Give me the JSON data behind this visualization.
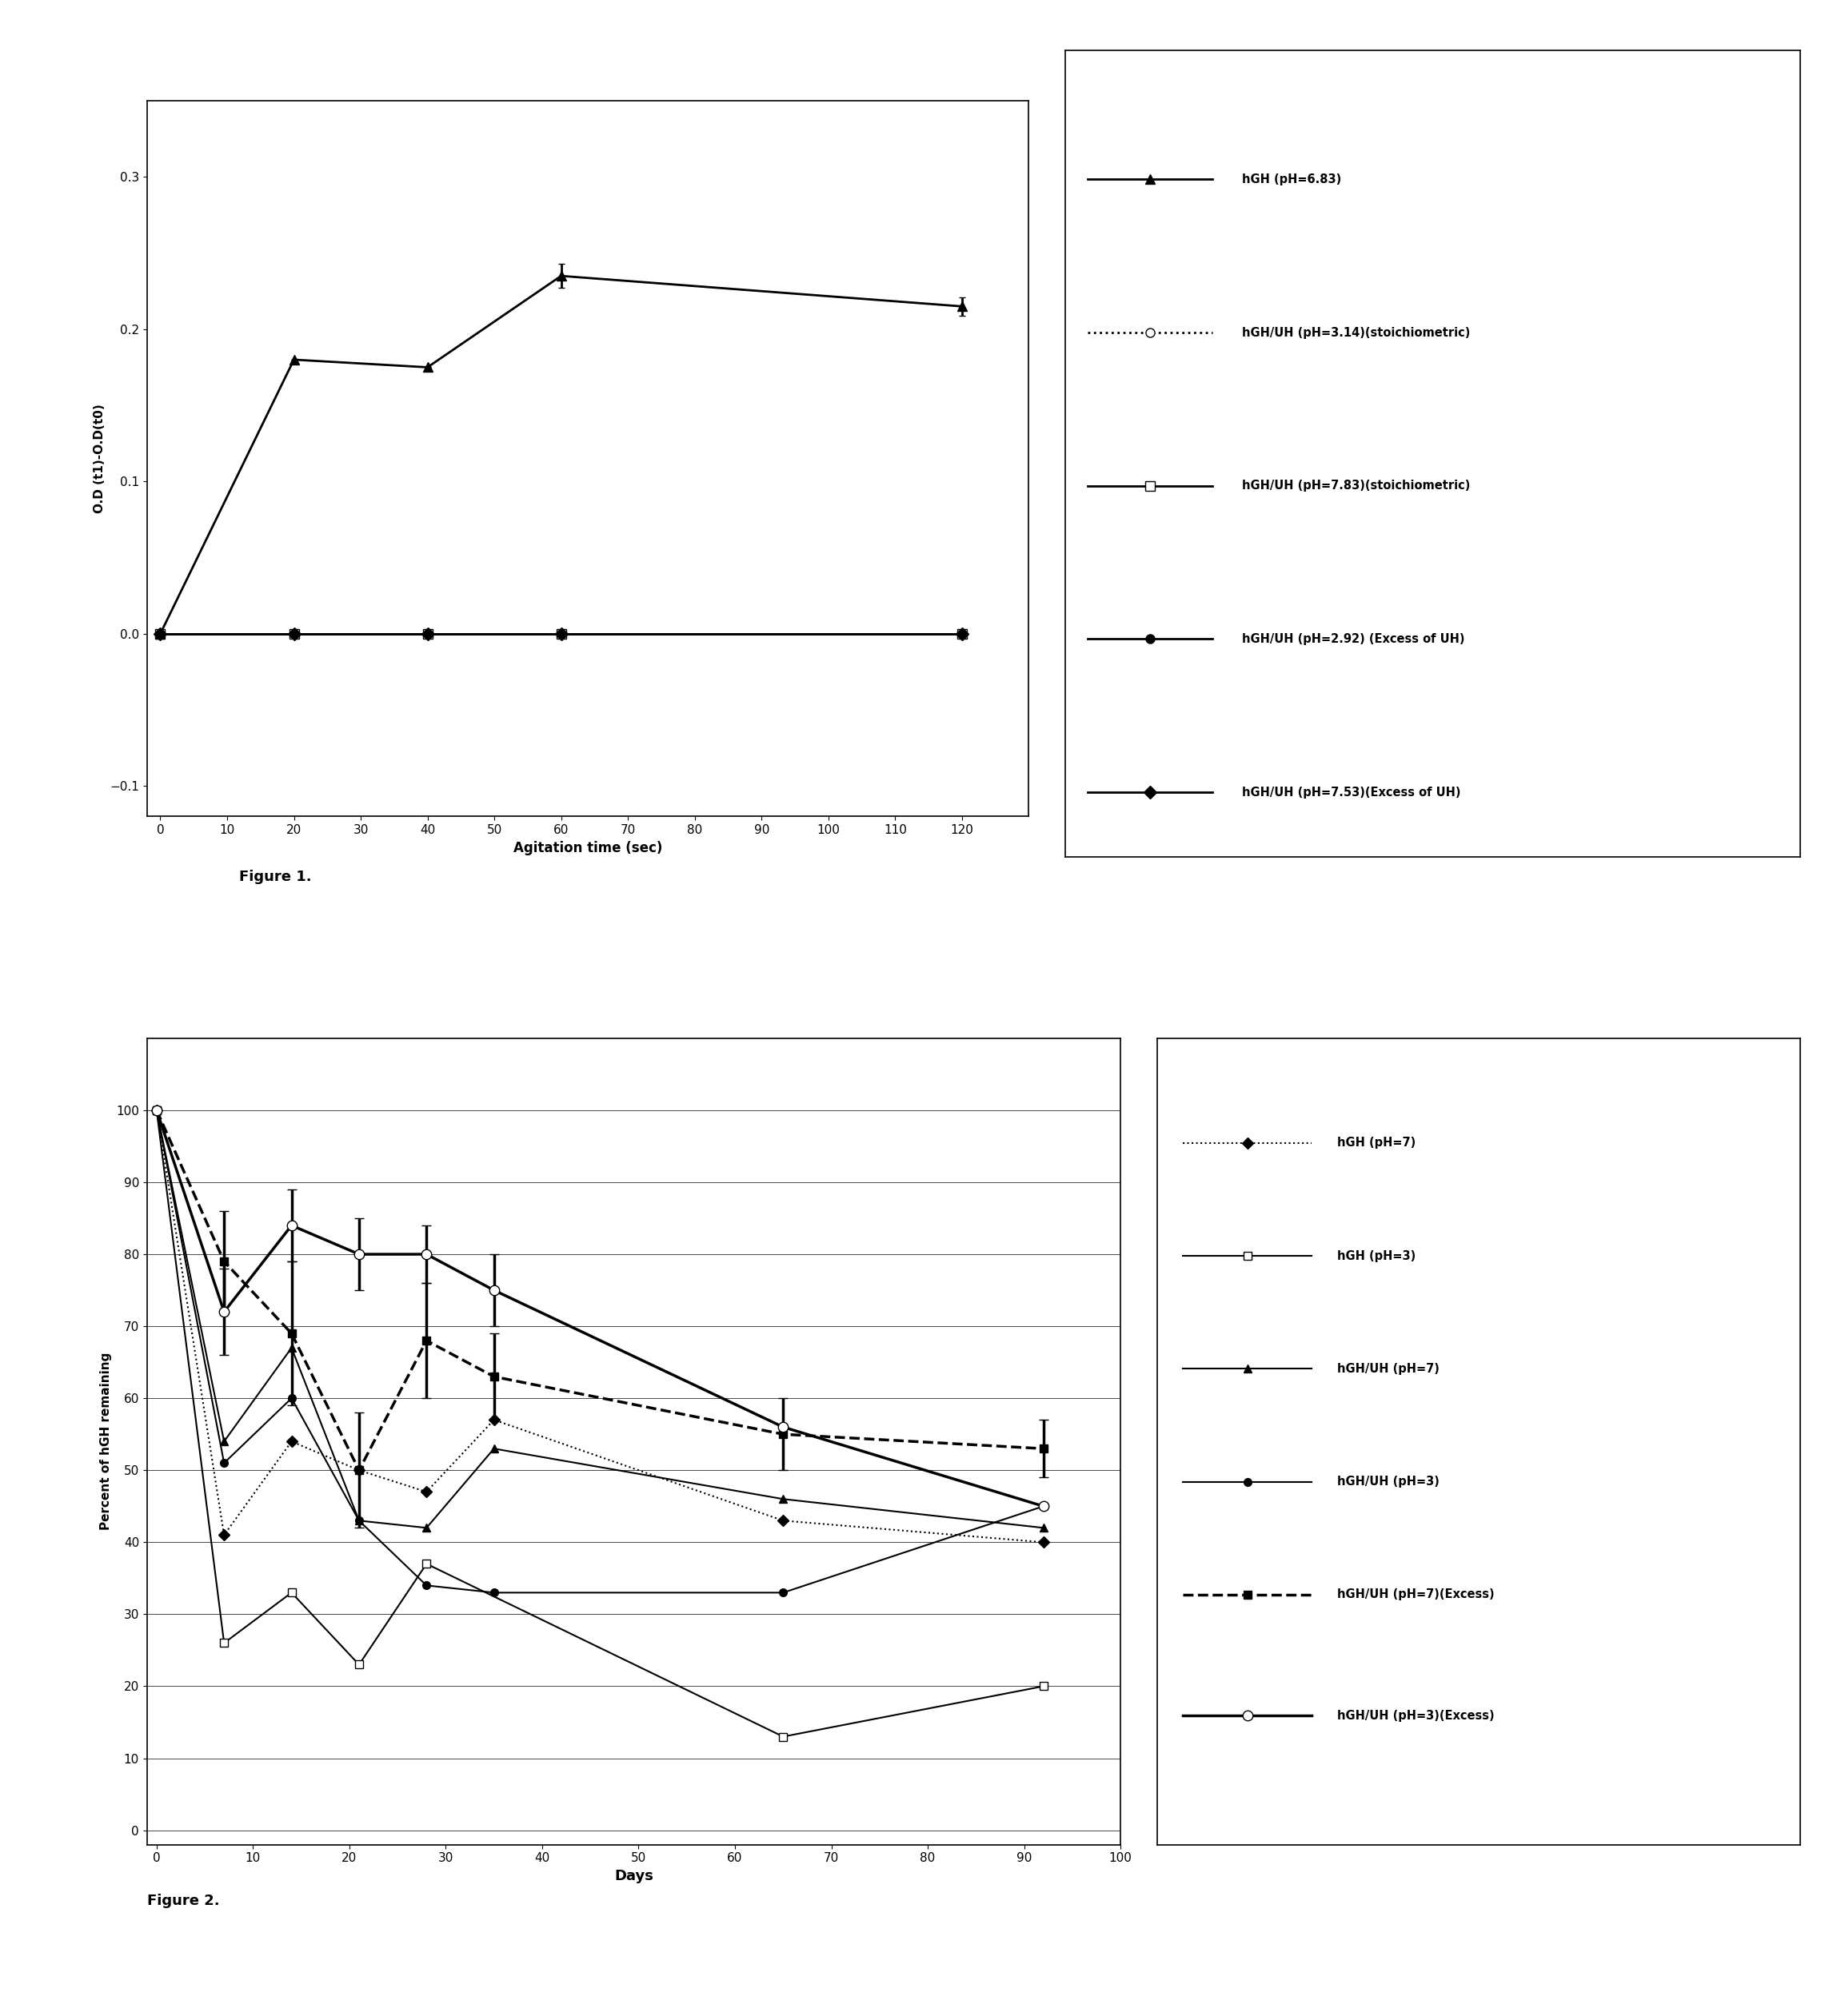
{
  "fig1": {
    "xlabel": "Agitation time (sec)",
    "ylabel": "O.D (t1)-O.D(t0)",
    "xlim": [
      -2,
      130
    ],
    "ylim": [
      -0.12,
      0.35
    ],
    "xticks": [
      0,
      10,
      20,
      30,
      40,
      50,
      60,
      70,
      80,
      90,
      100,
      110,
      120
    ],
    "yticks": [
      -0.1,
      0.0,
      0.1,
      0.2,
      0.3
    ],
    "series": [
      {
        "label": "hGH (pH=6.83)",
        "x": [
          0,
          20,
          40,
          60,
          120
        ],
        "y": [
          0.0,
          0.18,
          0.175,
          0.235,
          0.215
        ],
        "yerr": [
          0,
          0,
          0,
          0.008,
          0.006
        ],
        "color": "black",
        "linestyle": "-",
        "marker": "^",
        "markersize": 9,
        "markerfacecolor": "black",
        "linewidth": 2.0
      },
      {
        "label": "hGH/UH (pH=3.14)(stoichiometric)",
        "x": [
          0,
          20,
          40,
          60,
          120
        ],
        "y": [
          0.0,
          0.0,
          0.0,
          0.0,
          0.0
        ],
        "yerr": [
          0,
          0,
          0,
          0,
          0
        ],
        "color": "black",
        "linestyle": ":",
        "marker": "o",
        "markersize": 8,
        "markerfacecolor": "white",
        "linewidth": 2.0
      },
      {
        "label": "hGH/UH (pH=7.83)(stoichiometric)",
        "x": [
          0,
          20,
          40,
          60,
          120
        ],
        "y": [
          0.0,
          0.0,
          0.0,
          0.0,
          0.0
        ],
        "yerr": [
          0,
          0,
          0,
          0,
          0
        ],
        "color": "black",
        "linestyle": "-",
        "marker": "s",
        "markersize": 8,
        "markerfacecolor": "white",
        "linewidth": 2.0
      },
      {
        "label": "hGH/UH (pH=2.92) (Excess of UH)",
        "x": [
          0,
          20,
          40,
          60,
          120
        ],
        "y": [
          0.0,
          0.0,
          0.0,
          0.0,
          0.0
        ],
        "yerr": [
          0,
          0,
          0,
          0,
          0
        ],
        "color": "black",
        "linestyle": "-",
        "marker": "o",
        "markersize": 8,
        "markerfacecolor": "black",
        "linewidth": 2.0
      },
      {
        "label": "hGH/UH (pH=7.53)(Excess of UH)",
        "x": [
          0,
          20,
          40,
          60,
          120
        ],
        "y": [
          0.0,
          0.0,
          0.0,
          0.0,
          0.0
        ],
        "yerr": [
          0,
          0,
          0,
          0,
          0
        ],
        "color": "black",
        "linestyle": "-",
        "marker": "D",
        "markersize": 8,
        "markerfacecolor": "black",
        "linewidth": 2.0
      }
    ],
    "legend": [
      {
        "label": "hGH (pH=6.83)",
        "linestyle": "-",
        "marker": "^",
        "markerfacecolor": "black",
        "linewidth": 2.0
      },
      {
        "label": "hGH/UH (pH=3.14)(stoichiometric)",
        "linestyle": ":",
        "marker": "o",
        "markerfacecolor": "white",
        "linewidth": 2.0
      },
      {
        "label": "hGH/UH (pH=7.83)(stoichiometric)",
        "linestyle": "-",
        "marker": "s",
        "markerfacecolor": "white",
        "linewidth": 2.0
      },
      {
        "label": "hGH/UH (pH=2.92) (Excess of UH)",
        "linestyle": "-",
        "marker": "o",
        "markerfacecolor": "black",
        "linewidth": 2.0
      },
      {
        "label": "hGH/UH (pH=7.53)(Excess of UH)",
        "linestyle": "-",
        "marker": "D",
        "markerfacecolor": "black",
        "linewidth": 2.0
      }
    ]
  },
  "fig2": {
    "xlabel": "Days",
    "ylabel": "Percent of hGH remaining",
    "xlim": [
      -1,
      100
    ],
    "ylim": [
      -2,
      110
    ],
    "xticks": [
      0,
      10,
      20,
      30,
      40,
      50,
      60,
      70,
      80,
      90,
      100
    ],
    "yticks": [
      0,
      10,
      20,
      30,
      40,
      50,
      60,
      70,
      80,
      90,
      100
    ],
    "series": [
      {
        "label": "hGH (pH=7)",
        "x": [
          0,
          7,
          14,
          21,
          28,
          35,
          65,
          92
        ],
        "y": [
          100,
          41,
          54,
          50,
          47,
          57,
          43,
          40
        ],
        "yerr": [
          0,
          0,
          0,
          0,
          0,
          0,
          0,
          0
        ],
        "color": "black",
        "linestyle": ":",
        "marker": "D",
        "markersize": 7,
        "markerfacecolor": "black",
        "linewidth": 1.5
      },
      {
        "label": "hGH (pH=3)",
        "x": [
          0,
          7,
          14,
          21,
          28,
          65,
          92
        ],
        "y": [
          100,
          26,
          33,
          23,
          37,
          13,
          20
        ],
        "yerr": [
          0,
          0,
          0,
          0,
          0,
          0,
          0
        ],
        "color": "black",
        "linestyle": "-",
        "marker": "s",
        "markersize": 7,
        "markerfacecolor": "white",
        "linewidth": 1.5
      },
      {
        "label": "hGH/UH (pH=7)",
        "x": [
          0,
          7,
          14,
          21,
          28,
          35,
          65,
          92
        ],
        "y": [
          100,
          54,
          67,
          43,
          42,
          53,
          46,
          42
        ],
        "yerr": [
          0,
          0,
          0,
          0,
          0,
          0,
          0,
          0
        ],
        "color": "black",
        "linestyle": "-",
        "marker": "^",
        "markersize": 7,
        "markerfacecolor": "black",
        "linewidth": 1.5
      },
      {
        "label": "hGH/UH (pH=3)",
        "x": [
          0,
          7,
          14,
          21,
          28,
          35,
          65,
          92
        ],
        "y": [
          100,
          51,
          60,
          43,
          34,
          33,
          33,
          45
        ],
        "yerr": [
          0,
          0,
          0,
          0,
          0,
          0,
          0,
          0
        ],
        "color": "black",
        "linestyle": "-",
        "marker": "o",
        "markersize": 7,
        "markerfacecolor": "black",
        "linewidth": 1.5
      },
      {
        "label": "hGH/UH (pH=7)(Excess)",
        "x": [
          0,
          7,
          14,
          21,
          28,
          35,
          65,
          92
        ],
        "y": [
          100,
          79,
          69,
          50,
          68,
          63,
          55,
          53
        ],
        "yerr": [
          0,
          7,
          10,
          8,
          8,
          6,
          5,
          4
        ],
        "color": "black",
        "linestyle": "--",
        "marker": "s",
        "markersize": 7,
        "markerfacecolor": "black",
        "linewidth": 2.5
      },
      {
        "label": "hGH/UH (pH=3)(Excess)",
        "x": [
          0,
          7,
          14,
          21,
          28,
          35,
          65,
          92
        ],
        "y": [
          100,
          72,
          84,
          80,
          80,
          75,
          56,
          45
        ],
        "yerr": [
          0,
          6,
          5,
          5,
          4,
          5,
          0,
          0
        ],
        "color": "black",
        "linestyle": "-",
        "marker": "o",
        "markersize": 9,
        "markerfacecolor": "white",
        "linewidth": 2.5
      }
    ],
    "legend": [
      {
        "label": "hGH (pH=7)",
        "linestyle": ":",
        "marker": "D",
        "markerfacecolor": "black",
        "linewidth": 1.5
      },
      {
        "label": "hGH (pH=3)",
        "linestyle": "-",
        "marker": "s",
        "markerfacecolor": "white",
        "linewidth": 1.5
      },
      {
        "label": "hGH/UH (pH=7)",
        "linestyle": "-",
        "marker": "^",
        "markerfacecolor": "black",
        "linewidth": 1.5
      },
      {
        "label": "hGH/UH (pH=3)",
        "linestyle": "-",
        "marker": "o",
        "markerfacecolor": "black",
        "linewidth": 1.5
      },
      {
        "label": "hGH/UH (pH=7)(Excess)",
        "linestyle": "--",
        "marker": "s",
        "markerfacecolor": "black",
        "linewidth": 2.5
      },
      {
        "label": "hGH/UH (pH=3)(Excess)",
        "linestyle": "-",
        "marker": "o",
        "markerfacecolor": "white",
        "linewidth": 2.5
      }
    ]
  },
  "figure1_caption": "Figure 1.",
  "figure2_caption": "Figure 2."
}
